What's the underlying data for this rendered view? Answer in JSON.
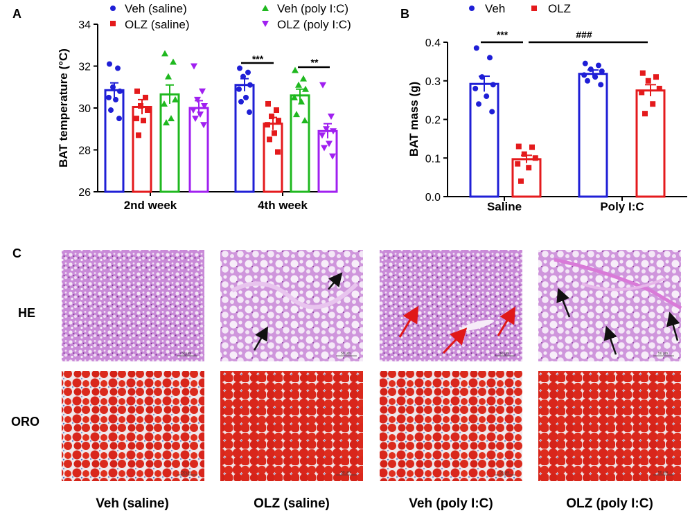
{
  "panel_letters": [
    "A",
    "B",
    "C"
  ],
  "colors": {
    "veh_saline": "#1f1fd6",
    "olz_saline": "#e41a1c",
    "veh_polyic": "#1fb81f",
    "olz_polyic": "#a020f0",
    "he_base": "#c98ad8",
    "oro_fat": "#d9261c"
  },
  "chart_data": [
    {
      "panel": "A",
      "type": "bar",
      "ylabel": "BAT  temperature (°C)",
      "ylim": [
        26,
        34
      ],
      "yticks": [
        "26",
        "28",
        "30",
        "32",
        "34"
      ],
      "categories": [
        "2nd week",
        "4th week"
      ],
      "series": [
        {
          "name": "Veh (saline)",
          "marker": "circle",
          "color": "#1f1fd6",
          "values": [
            30.85,
            31.1
          ],
          "sem": [
            0.35,
            0.3
          ],
          "points": [
            [
              32.1,
              31.9,
              31.0,
              30.8,
              30.5,
              30.4,
              29.9,
              29.5
            ],
            [
              31.9,
              31.7,
              31.5,
              31.1,
              30.9,
              30.5,
              30.3,
              29.8
            ]
          ]
        },
        {
          "name": "OLZ (saline)",
          "marker": "square",
          "color": "#e41a1c",
          "values": [
            30.05,
            29.25
          ],
          "sem": [
            0.35,
            0.3
          ],
          "points": [
            [
              30.8,
              30.5,
              30.1,
              29.9,
              29.5,
              29.4,
              28.7
            ],
            [
              30.2,
              29.9,
              29.6,
              29.4,
              29.2,
              28.8,
              28.5,
              27.9
            ]
          ]
        },
        {
          "name": "Veh (poly I:C)",
          "marker": "triangle",
          "color": "#1fb81f",
          "values": [
            30.65,
            30.6
          ],
          "sem": [
            0.45,
            0.3
          ],
          "points": [
            [
              32.6,
              32.2,
              31.5,
              30.4,
              30.2,
              29.5,
              29.3
            ],
            [
              31.8,
              31.4,
              31.1,
              30.9,
              30.5,
              30.3,
              29.7,
              29.4
            ]
          ]
        },
        {
          "name": "OLZ (poly I:C)",
          "marker": "triangle-down",
          "color": "#a020f0",
          "values": [
            30.0,
            28.9
          ],
          "sem": [
            0.35,
            0.35
          ],
          "points": [
            [
              32.0,
              30.8,
              30.4,
              30.1,
              29.9,
              29.7,
              29.5,
              29.2
            ],
            [
              31.1,
              29.6,
              29.0,
              28.9,
              28.7,
              28.3,
              28.1,
              27.7
            ]
          ]
        }
      ],
      "significance": [
        {
          "label": "***",
          "category": "4th week",
          "between": [
            "Veh (saline)",
            "OLZ (saline)"
          ]
        },
        {
          "label": "**",
          "category": "4th week",
          "between": [
            "Veh (poly I:C)",
            "OLZ (poly I:C)"
          ]
        }
      ]
    },
    {
      "panel": "B",
      "type": "bar",
      "ylabel": "BAT mass (g)",
      "ylim": [
        0.0,
        0.4
      ],
      "yticks": [
        "0.0",
        "0.1",
        "0.2",
        "0.3",
        "0.4"
      ],
      "categories": [
        "Saline",
        "Poly I:C"
      ],
      "series": [
        {
          "name": "Veh",
          "marker": "circle",
          "color": "#1f1fd6",
          "values": [
            0.292,
            0.318
          ],
          "sem": [
            0.02,
            0.01
          ],
          "points": [
            [
              0.385,
              0.36,
              0.31,
              0.29,
              0.28,
              0.26,
              0.24,
              0.22
            ],
            [
              0.345,
              0.34,
              0.33,
              0.325,
              0.315,
              0.31,
              0.3,
              0.29
            ]
          ]
        },
        {
          "name": "OLZ",
          "marker": "square",
          "color": "#e41a1c",
          "values": [
            0.097,
            0.275
          ],
          "sem": [
            0.01,
            0.015
          ],
          "points": [
            [
              0.13,
              0.128,
              0.11,
              0.1,
              0.085,
              0.075,
              0.04
            ],
            [
              0.32,
              0.31,
              0.3,
              0.28,
              0.27,
              0.24,
              0.215
            ]
          ]
        }
      ],
      "significance": [
        {
          "label": "***",
          "between": [
            "Saline: Veh",
            "Saline: OLZ"
          ]
        },
        {
          "label": "###",
          "between": [
            "Saline: OLZ",
            "Poly I:C: OLZ"
          ]
        }
      ]
    }
  ],
  "legend_a": [
    "Veh (saline)",
    "OLZ (saline)",
    "Veh (poly I:C)",
    "OLZ (poly I:C)"
  ],
  "legend_b": [
    "Veh",
    "OLZ"
  ],
  "micrographs": {
    "rows": [
      "HE",
      "ORO"
    ],
    "columns": [
      "Veh (saline)",
      "OLZ (saline)",
      "Veh (poly I:C)",
      "OLZ (poly I:C)"
    ],
    "scale_bar": "50 μm"
  }
}
